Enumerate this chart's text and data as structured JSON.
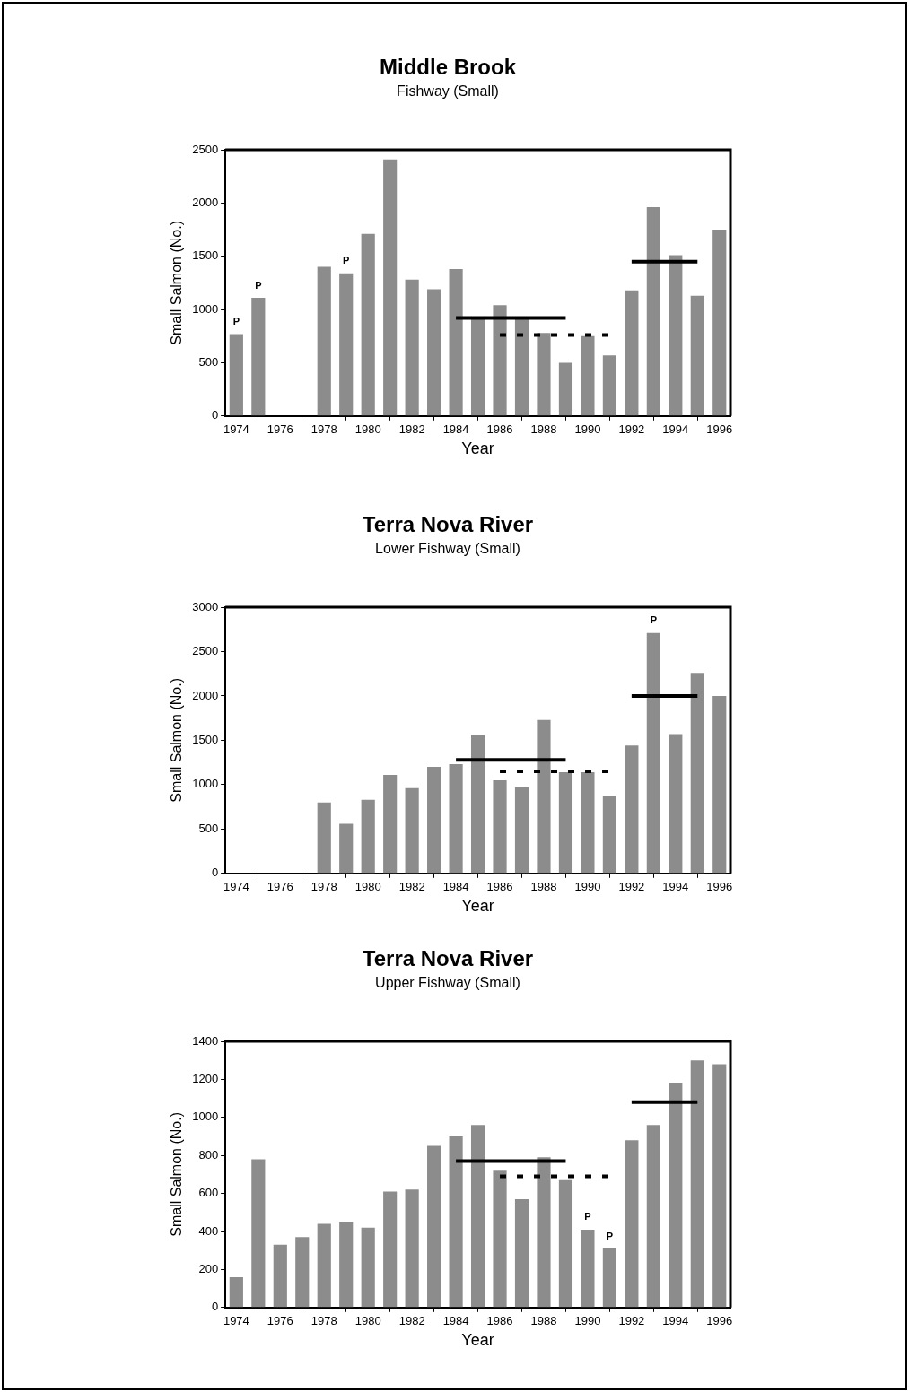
{
  "chart_data": [
    {
      "type": "bar",
      "title": "Middle Brook",
      "subtitle": "Fishway (Small)",
      "xlabel": "Year",
      "ylabel": "Small Salmon (No.)",
      "x": [
        1974,
        1975,
        1976,
        1977,
        1978,
        1979,
        1980,
        1981,
        1982,
        1983,
        1984,
        1985,
        1986,
        1987,
        1988,
        1989,
        1990,
        1991,
        1992,
        1993,
        1994,
        1995,
        1996
      ],
      "series": [
        {
          "color": "#8c8c8c",
          "values": [
            770,
            1110,
            null,
            null,
            1400,
            1340,
            1710,
            2410,
            1280,
            1190,
            1380,
            920,
            1040,
            920,
            780,
            500,
            750,
            570,
            1180,
            1960,
            1510,
            1130,
            1750
          ]
        },
        {
          "type": "line",
          "color": "#000000",
          "line_style": "solid",
          "x": [
            1984,
            1989
          ],
          "values": [
            920,
            920
          ]
        },
        {
          "type": "line",
          "color": "#000000",
          "line_style": "dotted",
          "x": [
            1986,
            1991
          ],
          "values": [
            760,
            760
          ]
        },
        {
          "type": "line",
          "color": "#000000",
          "line_style": "solid",
          "x": [
            1992,
            1995
          ],
          "values": [
            1450,
            1450
          ]
        }
      ],
      "xlim": [
        1973.5,
        1996.5
      ],
      "xticks": [
        1974,
        1976,
        1978,
        1980,
        1982,
        1984,
        1986,
        1988,
        1990,
        1992,
        1994,
        1996
      ],
      "ylim": [
        0,
        2500
      ],
      "yticks": [
        0,
        500,
        1000,
        1500,
        2000,
        2500
      ],
      "grid": false,
      "annotations": [
        {
          "text": "P",
          "x": 1974,
          "y": 770
        },
        {
          "text": "P",
          "x": 1975,
          "y": 1110
        },
        {
          "text": "P",
          "x": 1979,
          "y": 1340
        }
      ]
    },
    {
      "type": "bar",
      "title": "Terra Nova River",
      "subtitle": "Lower Fishway (Small)",
      "xlabel": "Year",
      "ylabel": "Small Salmon (No.)",
      "series": [
        {
          "color": "#8c8c8c",
          "x": [
            1978,
            1979,
            1980,
            1981,
            1982,
            1983,
            1984,
            1985,
            1986,
            1987,
            1988,
            1989,
            1990,
            1991,
            1992,
            1993,
            1994,
            1995,
            1996
          ],
          "values": [
            800,
            560,
            830,
            1110,
            960,
            1200,
            1230,
            1560,
            1050,
            970,
            1730,
            1140,
            1140,
            870,
            1440,
            2710,
            1570,
            2260,
            2000
          ]
        },
        {
          "type": "line",
          "color": "#000000",
          "line_style": "solid",
          "x": [
            1984,
            1989
          ],
          "values": [
            1280,
            1280
          ]
        },
        {
          "type": "line",
          "color": "#000000",
          "line_style": "dotted",
          "x": [
            1986,
            1991
          ],
          "values": [
            1150,
            1150
          ]
        },
        {
          "type": "line",
          "color": "#000000",
          "line_style": "solid",
          "x": [
            1992,
            1995
          ],
          "values": [
            2000,
            2000
          ]
        }
      ],
      "xlim": [
        1973.5,
        1996.5
      ],
      "xticks": [
        1974,
        1976,
        1978,
        1980,
        1982,
        1984,
        1986,
        1988,
        1990,
        1992,
        1994,
        1996
      ],
      "ylim": [
        0,
        3000
      ],
      "yticks": [
        0,
        500,
        1000,
        1500,
        2000,
        2500,
        3000
      ],
      "grid": false,
      "annotations": [
        {
          "text": "P",
          "x": 1993,
          "y": 2710
        }
      ]
    },
    {
      "type": "bar",
      "title": "Terra Nova River",
      "subtitle": "Upper Fishway (Small)",
      "xlabel": "Year",
      "ylabel": "Small Salmon (No.)",
      "x": [
        1974,
        1975,
        1976,
        1977,
        1978,
        1979,
        1980,
        1981,
        1982,
        1983,
        1984,
        1985,
        1986,
        1987,
        1988,
        1989,
        1990,
        1991,
        1992,
        1993,
        1994,
        1995,
        1996
      ],
      "series": [
        {
          "color": "#8c8c8c",
          "values": [
            160,
            780,
            330,
            370,
            440,
            450,
            420,
            610,
            620,
            850,
            900,
            960,
            720,
            570,
            790,
            670,
            410,
            310,
            880,
            960,
            1180,
            1300,
            1280
          ]
        },
        {
          "type": "line",
          "color": "#000000",
          "line_style": "solid",
          "x": [
            1984,
            1989
          ],
          "values": [
            770,
            770
          ]
        },
        {
          "type": "line",
          "color": "#000000",
          "line_style": "dotted",
          "x": [
            1986,
            1991
          ],
          "values": [
            690,
            690
          ]
        },
        {
          "type": "line",
          "color": "#000000",
          "line_style": "solid",
          "x": [
            1992,
            1995
          ],
          "values": [
            1080,
            1080
          ]
        }
      ],
      "xlim": [
        1973.5,
        1996.5
      ],
      "xticks": [
        1974,
        1976,
        1978,
        1980,
        1982,
        1984,
        1986,
        1988,
        1990,
        1992,
        1994,
        1996
      ],
      "ylim": [
        0,
        1400
      ],
      "yticks": [
        0,
        200,
        400,
        600,
        800,
        1000,
        1200,
        1400
      ],
      "grid": false,
      "annotations": [
        {
          "text": "P",
          "x": 1990,
          "y": 410
        },
        {
          "text": "P",
          "x": 1991,
          "y": 310
        }
      ]
    }
  ]
}
